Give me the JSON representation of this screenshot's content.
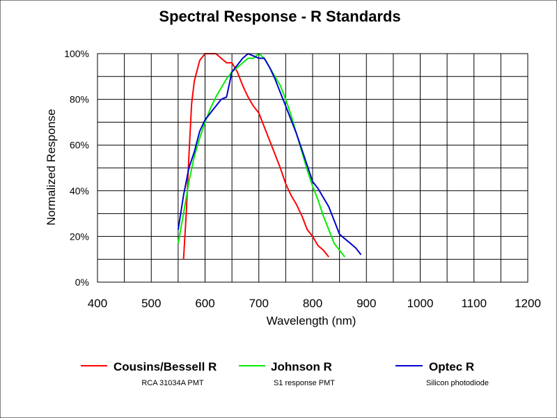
{
  "chart_data": {
    "type": "line",
    "title": "Spectral Response - R Standards",
    "xlabel": "Wavelength (nm)",
    "ylabel": "Normalized Response",
    "xlim": [
      400,
      1200
    ],
    "ylim": [
      0,
      100
    ],
    "xticks": [
      400,
      500,
      600,
      700,
      800,
      900,
      1000,
      1100,
      1200
    ],
    "x_tick_labels": [
      "400",
      "500",
      "600",
      "700",
      "800",
      "900",
      "1000",
      "1100",
      "1200"
    ],
    "yticks": [
      0,
      20,
      40,
      60,
      80,
      100
    ],
    "y_tick_labels": [
      "0%",
      "20%",
      "40%",
      "60%",
      "80%",
      "100%"
    ],
    "grid": true,
    "legend_position": "bottom",
    "series": [
      {
        "name": "Cousins/Bessell R",
        "subtitle": "RCA 31034A  PMT",
        "color": "#ff0000",
        "points": [
          [
            560,
            10
          ],
          [
            565,
            30
          ],
          [
            570,
            55
          ],
          [
            575,
            78
          ],
          [
            580,
            88
          ],
          [
            590,
            97
          ],
          [
            600,
            100
          ],
          [
            610,
            100
          ],
          [
            620,
            100
          ],
          [
            630,
            98
          ],
          [
            640,
            96
          ],
          [
            650,
            96
          ],
          [
            660,
            92
          ],
          [
            670,
            86
          ],
          [
            680,
            81
          ],
          [
            690,
            77
          ],
          [
            700,
            74
          ],
          [
            710,
            68
          ],
          [
            720,
            62
          ],
          [
            730,
            56
          ],
          [
            740,
            50
          ],
          [
            750,
            43
          ],
          [
            760,
            38
          ],
          [
            770,
            34
          ],
          [
            780,
            29
          ],
          [
            790,
            23
          ],
          [
            800,
            20
          ],
          [
            810,
            16
          ],
          [
            820,
            14
          ],
          [
            830,
            11
          ]
        ]
      },
      {
        "name": "Johnson R",
        "subtitle": "S1 response PMT",
        "color": "#00ee00",
        "points": [
          [
            550,
            17
          ],
          [
            560,
            30
          ],
          [
            570,
            44
          ],
          [
            580,
            55
          ],
          [
            590,
            63
          ],
          [
            600,
            70
          ],
          [
            610,
            76
          ],
          [
            620,
            81
          ],
          [
            630,
            85
          ],
          [
            640,
            89
          ],
          [
            650,
            92
          ],
          [
            660,
            94
          ],
          [
            670,
            96
          ],
          [
            680,
            98
          ],
          [
            690,
            98
          ],
          [
            700,
            100
          ],
          [
            710,
            98
          ],
          [
            720,
            94
          ],
          [
            730,
            90
          ],
          [
            740,
            86
          ],
          [
            750,
            80
          ],
          [
            760,
            73
          ],
          [
            770,
            65
          ],
          [
            780,
            57
          ],
          [
            790,
            49
          ],
          [
            800,
            42
          ],
          [
            810,
            36
          ],
          [
            820,
            29
          ],
          [
            830,
            23
          ],
          [
            840,
            17
          ],
          [
            850,
            14
          ],
          [
            860,
            11
          ]
        ]
      },
      {
        "name": "Optec R",
        "subtitle": "Silicon photodiode",
        "color": "#0000cc",
        "points": [
          [
            550,
            23
          ],
          [
            560,
            38
          ],
          [
            570,
            50
          ],
          [
            580,
            57
          ],
          [
            590,
            66
          ],
          [
            600,
            71
          ],
          [
            610,
            74
          ],
          [
            620,
            77
          ],
          [
            630,
            80
          ],
          [
            640,
            81
          ],
          [
            650,
            92
          ],
          [
            660,
            95
          ],
          [
            670,
            98
          ],
          [
            680,
            100
          ],
          [
            690,
            99
          ],
          [
            700,
            98
          ],
          [
            710,
            98
          ],
          [
            720,
            94
          ],
          [
            730,
            89
          ],
          [
            740,
            83
          ],
          [
            750,
            77
          ],
          [
            760,
            71
          ],
          [
            770,
            65
          ],
          [
            780,
            58
          ],
          [
            790,
            51
          ],
          [
            800,
            44
          ],
          [
            810,
            41
          ],
          [
            820,
            37
          ],
          [
            830,
            33
          ],
          [
            840,
            27
          ],
          [
            850,
            21
          ],
          [
            860,
            19
          ],
          [
            870,
            17
          ],
          [
            880,
            15
          ],
          [
            890,
            12
          ]
        ]
      }
    ]
  }
}
